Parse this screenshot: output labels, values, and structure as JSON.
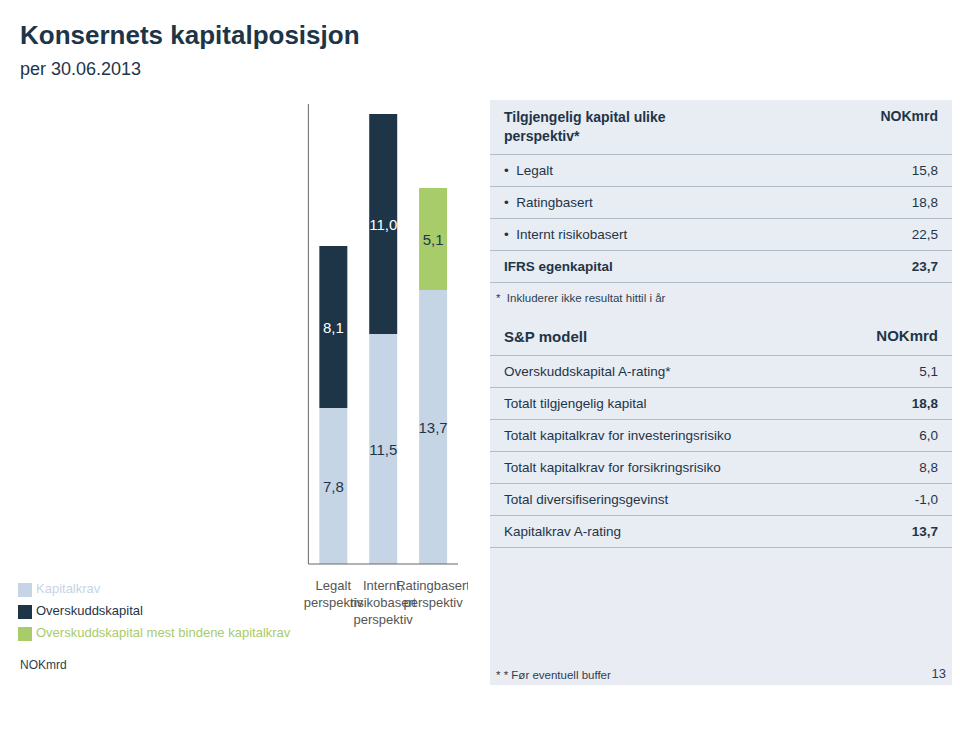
{
  "chart_data": {
    "type": "bar",
    "stacked": true,
    "title": "Konsernets kapitalposisjon",
    "subtitle": "per 30.06.2013",
    "categories": [
      "Legalt\nperspektiv",
      "Internt,\nrisikobasert\nperspektiv",
      "Ratingbasert\nperspektiv"
    ],
    "series": [
      {
        "name": "Kapitalkrav",
        "color": "#c5d5e5",
        "values": [
          7.8,
          11.5,
          13.7
        ],
        "value_labels": [
          "7,8",
          "11,5",
          "13,7"
        ]
      },
      {
        "name": "Overskuddskapital",
        "color": "#1e3548",
        "values": [
          8.1,
          11.0,
          0.0
        ],
        "value_labels": [
          "8,1",
          "11,0",
          null
        ]
      },
      {
        "name": "Overskuddskapital mest bindene kapitalkrav",
        "color": "#a8cc6a",
        "values": [
          0.0,
          0.0,
          5.1
        ],
        "value_labels": [
          null,
          null,
          "5,1"
        ]
      }
    ],
    "ylim": [
      0,
      23
    ],
    "yticks": [],
    "ylabel": "NOKmrd",
    "data_labels": true,
    "tick_labels": "x",
    "legend": "bottom",
    "grid": false
  },
  "tables": [
    {
      "title": "Tilgjengelig kapital ulike\nperspektiv*",
      "header_right": "NOKmrd",
      "rows": [
        {
          "label": "•  Legalt",
          "value": "15,8",
          "bold": false
        },
        {
          "label": "•  Ratingbasert",
          "value": "18,8",
          "bold": false
        },
        {
          "label": "•  Internt risikobasert",
          "value": "22,5",
          "bold": false
        },
        {
          "label": "IFRS egenkapital",
          "value": "23,7",
          "bold": true
        }
      ],
      "footnote": "*  Inkluderer ikke resultat hittil i år"
    },
    {
      "title": "S&P modell",
      "header_right": "NOKmrd",
      "rows": [
        {
          "label": "Overskuddskapital A-rating*",
          "value": "5,1",
          "value_bold": false
        },
        {
          "label": "Totalt tilgjengelig kapital",
          "value": "18,8",
          "value_bold": true
        },
        {
          "label": "Totalt kapitalkrav for investeringsrisiko",
          "value": "6,0",
          "value_bold": false
        },
        {
          "label": "Totalt kapitalkrav for forsikringsrisiko",
          "value": "8,8",
          "value_bold": false
        },
        {
          "label": "Total diversifiseringsgevinst",
          "value": "-1,0",
          "value_bold": false
        },
        {
          "label": "Kapitalkrav A-rating",
          "value": "13,7",
          "value_bold": true
        }
      ],
      "footnote": "* * Før eventuell buffer"
    }
  ],
  "page_number": "13"
}
